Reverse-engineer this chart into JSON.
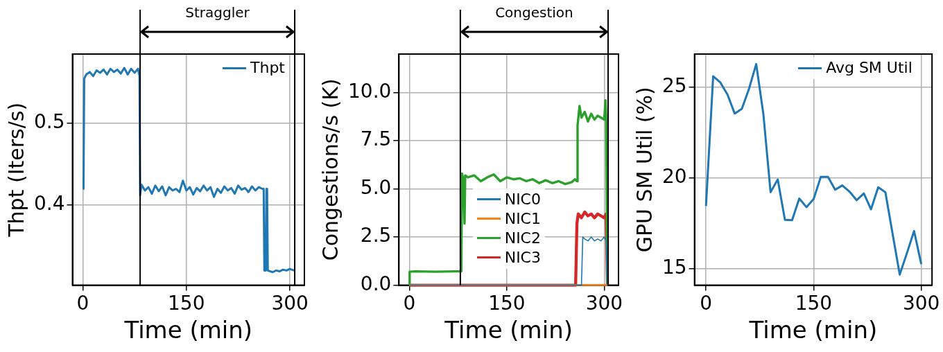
{
  "chart_data": [
    {
      "type": "line",
      "xlabel": "Time (min)",
      "ylabel": "Thpt (Iters/s)",
      "xlim": [
        -15,
        321
      ],
      "ylim": [
        0.302,
        0.585
      ],
      "xticks": [
        0,
        150,
        300
      ],
      "yticks": [
        0.4,
        0.5
      ],
      "grid": true,
      "legend": "top right",
      "marker": "none",
      "line_style": "solid",
      "series": [
        {
          "name": "Thpt",
          "color": "#1f77b4",
          "x": [
            0,
            1,
            2,
            5,
            10,
            15,
            20,
            25,
            30,
            35,
            40,
            45,
            50,
            55,
            60,
            65,
            70,
            75,
            80,
            82,
            83,
            85,
            90,
            95,
            100,
            105,
            110,
            115,
            120,
            125,
            130,
            135,
            140,
            145,
            150,
            155,
            160,
            165,
            170,
            175,
            180,
            185,
            190,
            195,
            200,
            205,
            210,
            215,
            220,
            225,
            230,
            235,
            240,
            245,
            250,
            255,
            260,
            262,
            263,
            265,
            266,
            267,
            268,
            275,
            280,
            285,
            290,
            295,
            300,
            306
          ],
          "values": [
            0.42,
            0.42,
            0.555,
            0.56,
            0.563,
            0.558,
            0.565,
            0.562,
            0.566,
            0.56,
            0.567,
            0.563,
            0.566,
            0.561,
            0.568,
            0.56,
            0.567,
            0.562,
            0.567,
            0.558,
            0.412,
            0.425,
            0.418,
            0.422,
            0.414,
            0.424,
            0.417,
            0.423,
            0.412,
            0.422,
            0.418,
            0.42,
            0.416,
            0.43,
            0.418,
            0.422,
            0.413,
            0.421,
            0.417,
            0.424,
            0.418,
            0.422,
            0.41,
            0.42,
            0.415,
            0.423,
            0.418,
            0.421,
            0.414,
            0.424,
            0.419,
            0.421,
            0.416,
            0.423,
            0.418,
            0.422,
            0.42,
            0.42,
            0.32,
            0.32,
            0.42,
            0.42,
            0.32,
            0.318,
            0.32,
            0.319,
            0.321,
            0.32,
            0.322,
            0.32
          ]
        }
      ],
      "ref_lines": [
        {
          "axis": "x",
          "value": 83,
          "color": "#000000"
        },
        {
          "axis": "x",
          "value": 307,
          "color": "#000000"
        }
      ],
      "annotations": [
        "Straggler"
      ]
    },
    {
      "type": "line",
      "xlabel": "Time (min)",
      "ylabel": "Congestions/s (K)",
      "xlim": [
        -16,
        322
      ],
      "ylim": [
        0,
        12
      ],
      "xticks": [
        0,
        150,
        300
      ],
      "yticks": [
        {
          "value": 0,
          "label": "0.0"
        },
        {
          "value": 2.5,
          "label": "2.5"
        },
        {
          "value": 5,
          "label": "5.0"
        },
        {
          "value": 7.5,
          "label": "7.5"
        },
        {
          "value": 10,
          "label": "10.0"
        }
      ],
      "grid": true,
      "legend": "bottom",
      "marker": "none",
      "line_style": "solid",
      "series": [
        {
          "name": "NIC0",
          "color": "#1f77b4",
          "x": [
            0,
            265,
            267,
            270,
            275,
            280,
            285,
            290,
            295,
            300,
            303,
            305
          ],
          "values": [
            0,
            0,
            2.5,
            2.4,
            2.3,
            2.5,
            2.3,
            2.4,
            2.3,
            2.5,
            2.3,
            0
          ]
        },
        {
          "name": "NIC1",
          "color": "#ff7f0e",
          "x": [
            0,
            305
          ],
          "values": [
            0,
            0
          ]
        },
        {
          "name": "NIC2",
          "color": "#2ca02c",
          "x": [
            0,
            0.5,
            10,
            40,
            70,
            80,
            81,
            83,
            85,
            86,
            90,
            100,
            110,
            120,
            130,
            140,
            150,
            160,
            170,
            180,
            190,
            200,
            210,
            220,
            230,
            240,
            250,
            255,
            258,
            259,
            262,
            265,
            270,
            275,
            280,
            285,
            290,
            295,
            300,
            302,
            303,
            305
          ],
          "values": [
            0,
            0.7,
            0.72,
            0.7,
            0.72,
            0.72,
            5.8,
            5.5,
            3.2,
            5.7,
            5.6,
            5.7,
            5.4,
            5.6,
            5.75,
            5.4,
            5.6,
            5.5,
            5.55,
            5.4,
            5.5,
            5.3,
            5.45,
            5.3,
            5.4,
            5.25,
            5.35,
            5.5,
            5.4,
            8.3,
            9.3,
            8.7,
            9,
            8.5,
            8.9,
            8.6,
            8.8,
            8.7,
            8.6,
            9.6,
            8.7,
            0
          ]
        },
        {
          "name": "NIC3",
          "color": "#d62728",
          "x": [
            0,
            256,
            258,
            260,
            265,
            270,
            275,
            280,
            285,
            290,
            295,
            300,
            303,
            305
          ],
          "values": [
            0,
            0,
            3.2,
            3.7,
            3.5,
            3.8,
            3.6,
            3.7,
            3.5,
            3.7,
            3.6,
            3.5,
            3.7,
            0
          ]
        }
      ],
      "ref_lines": [
        {
          "axis": "x",
          "value": 78.5,
          "color": "#000000"
        },
        {
          "axis": "x",
          "value": 306,
          "color": "#000000"
        }
      ],
      "annotations": [
        "Congestion"
      ]
    },
    {
      "type": "line",
      "xlabel": "Time (min)",
      "ylabel": "GPU SM Util (%)",
      "xlim": [
        -16,
        315
      ],
      "ylim": [
        14.1,
        26.8
      ],
      "xticks": [
        0,
        150,
        300
      ],
      "yticks": [
        15,
        20,
        25
      ],
      "grid": true,
      "legend": "top right",
      "marker": "none",
      "line_style": "solid",
      "series": [
        {
          "name": "Avg SM Util",
          "color": "#1f77b4",
          "x": [
            0,
            10,
            20,
            30,
            40,
            50,
            60,
            70,
            80,
            90,
            100,
            110,
            120,
            130,
            140,
            150,
            160,
            170,
            180,
            190,
            200,
            210,
            220,
            230,
            240,
            250,
            260,
            270,
            280,
            290,
            300
          ],
          "values": [
            18.45,
            25.58,
            25.24,
            24.57,
            23.53,
            23.79,
            24.9,
            26.25,
            23.49,
            19.21,
            19.91,
            17.69,
            17.67,
            18.86,
            18.39,
            18.83,
            20.05,
            20.05,
            19.35,
            19.58,
            19.24,
            18.77,
            19.14,
            18.27,
            19.48,
            19.21,
            16.94,
            14.68,
            15.86,
            17.08,
            15.26
          ]
        }
      ]
    }
  ]
}
